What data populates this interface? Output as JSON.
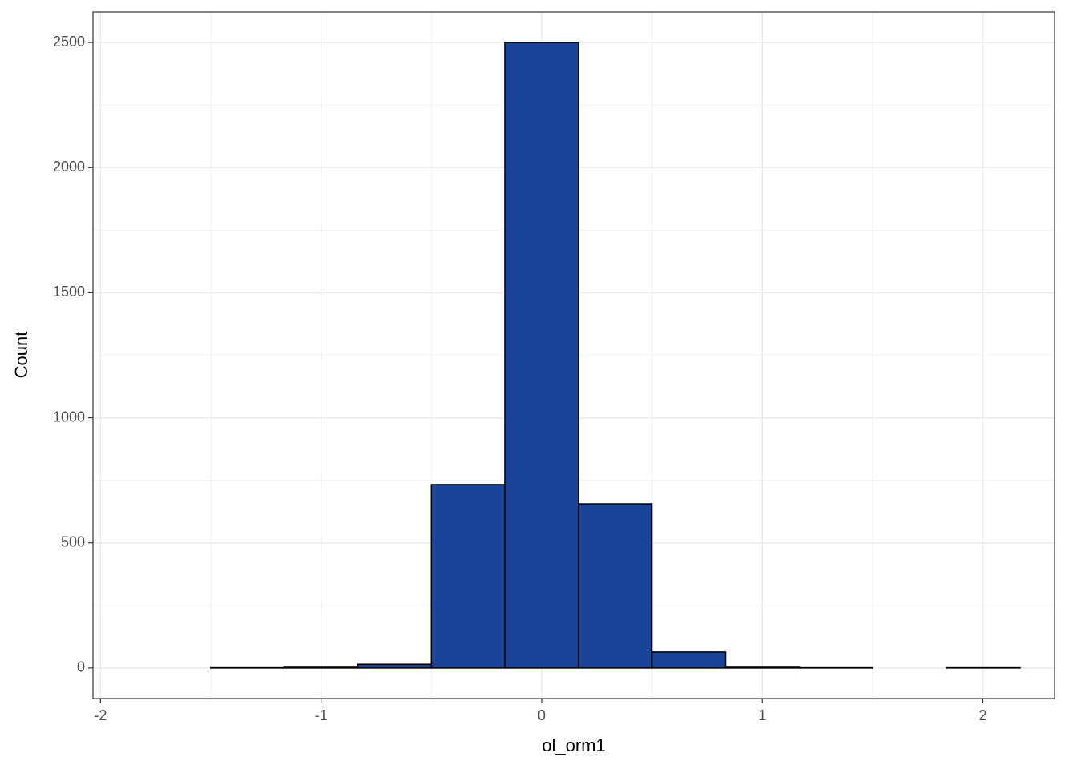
{
  "chart_data": {
    "type": "histogram",
    "x_label": "ol_orm1",
    "y_label": "Count",
    "bins": [
      -1.835,
      -1.501,
      -1.168,
      -0.834,
      -0.5,
      -0.167,
      0.167,
      0.5,
      0.834,
      1.168,
      1.501,
      1.835,
      2.169
    ],
    "values": [
      0,
      1,
      3,
      15,
      733,
      2500,
      656,
      64,
      3,
      1,
      0,
      1
    ],
    "color": "#1a4499",
    "edge_color": "#000000",
    "xlim": [
      -2.034,
      2.325
    ],
    "xticks": [
      -2,
      -1,
      0,
      1,
      2
    ],
    "ylim": [
      -122,
      2622
    ],
    "yticks": [
      0,
      500,
      1000,
      1500,
      2000,
      2500
    ],
    "grid": true
  }
}
